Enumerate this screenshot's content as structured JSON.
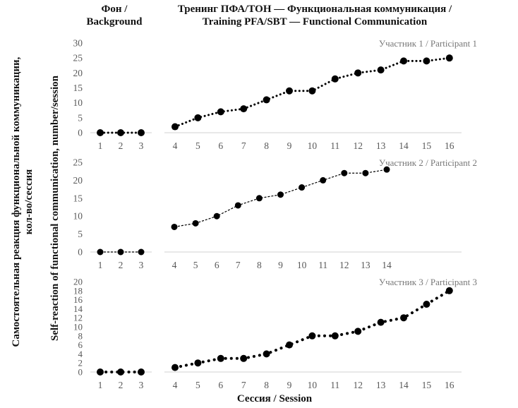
{
  "header": {
    "background_title_1": "Фон /",
    "background_title_2": "Background",
    "training_title_1": "Тренинг ПФА/ТОН — Функциональная коммуникация /",
    "training_title_2": "Training PFA/SBT — Functional Communication"
  },
  "chart_data": {
    "type": "line",
    "xlabel": "Сессия / Session",
    "ylabel_ru_1": "Самостоятельная реакция функциональной коммуникации,",
    "ylabel_ru_2": "кол-во/сессия",
    "ylabel_en": "Self-reaction of functional communication, number/session",
    "panels": [
      {
        "label": "Участник 1 / Participant  1",
        "ylim": [
          0,
          30
        ],
        "yticks": [
          0,
          5,
          10,
          15,
          20,
          25,
          30
        ],
        "line_style": "dotted",
        "background": {
          "x": [
            1,
            2,
            3
          ],
          "y": [
            0,
            0,
            0
          ]
        },
        "training": {
          "x": [
            4,
            5,
            6,
            7,
            8,
            9,
            10,
            11,
            12,
            13,
            14,
            15,
            16
          ],
          "y": [
            2,
            5,
            7,
            8,
            11,
            14,
            14,
            18,
            20,
            21,
            24,
            24,
            25
          ]
        }
      },
      {
        "label": "Участник 2 / Participant  2",
        "ylim": [
          0,
          25
        ],
        "yticks": [
          0,
          5,
          10,
          15,
          20,
          25
        ],
        "line_style": "dashed",
        "background": {
          "x": [
            1,
            2,
            3
          ],
          "y": [
            0,
            0,
            0
          ]
        },
        "training": {
          "x": [
            4,
            5,
            6,
            7,
            8,
            9,
            10,
            11,
            12,
            13,
            14
          ],
          "y": [
            7,
            8,
            10,
            13,
            15,
            16,
            18,
            20,
            22,
            22,
            23
          ]
        }
      },
      {
        "label": "Участник 3 / Participant  3",
        "ylim": [
          0,
          20
        ],
        "yticks": [
          0,
          2,
          4,
          6,
          8,
          10,
          12,
          14,
          16,
          18,
          20
        ],
        "line_style": "round-dotted",
        "background": {
          "x": [
            1,
            2,
            3
          ],
          "y": [
            0,
            0,
            0
          ]
        },
        "training": {
          "x": [
            4,
            5,
            6,
            7,
            8,
            9,
            10,
            11,
            12,
            13,
            14,
            15,
            16
          ],
          "y": [
            1,
            2,
            3,
            3,
            4,
            6,
            8,
            8,
            9,
            11,
            12,
            15,
            18
          ]
        }
      }
    ]
  },
  "colors": {
    "marker": "#000000",
    "axis": "#d0d0d0",
    "tick_text": "#595959"
  }
}
